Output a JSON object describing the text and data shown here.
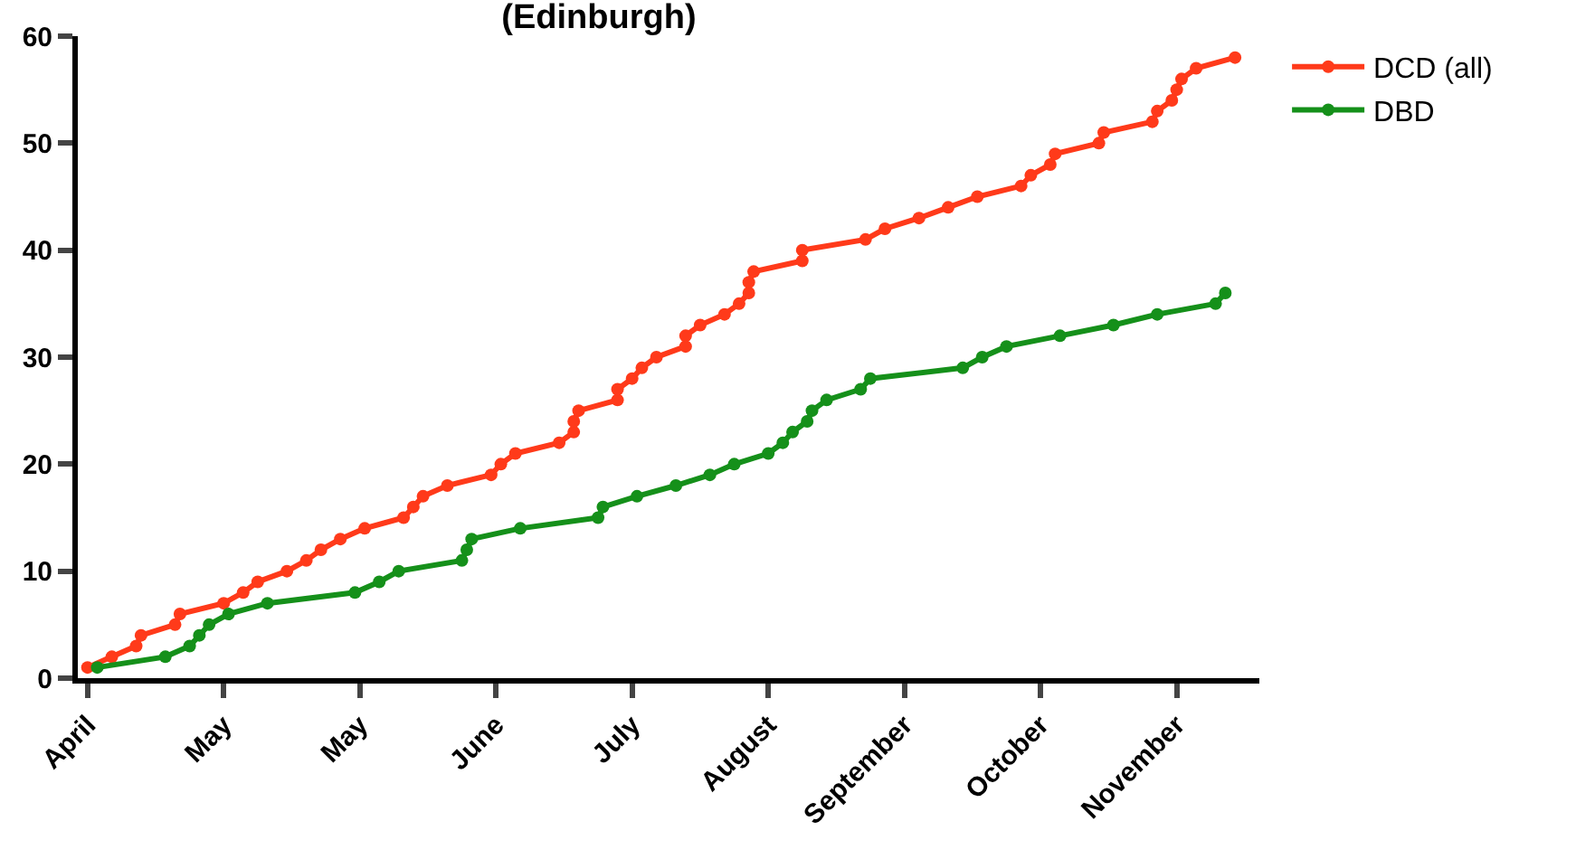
{
  "chart_data": {
    "type": "line",
    "title": "(Edinburgh)",
    "xlim": [
      "--04-01",
      "--11-30"
    ],
    "xticks": [
      {
        "value": "--04-03",
        "label": "April"
      },
      {
        "value": "--05-01",
        "label": "May"
      },
      {
        "value": "--05-29",
        "label": "May"
      },
      {
        "value": "--06-26",
        "label": "June"
      },
      {
        "value": "--07-24",
        "label": "July"
      },
      {
        "value": "--08-21",
        "label": "August"
      },
      {
        "value": "--09-18",
        "label": "September"
      },
      {
        "value": "--10-16",
        "label": "October"
      },
      {
        "value": "--11-13",
        "label": "November"
      }
    ],
    "ylim": [
      0,
      60
    ],
    "yticks": [
      0,
      10,
      20,
      30,
      40,
      50,
      60
    ],
    "series": [
      {
        "name": "DCD (all)",
        "color": "#ff3a1a",
        "x": [
          "--04-03",
          "--04-08",
          "--04-13",
          "--04-14",
          "--04-21",
          "--04-22",
          "--05-01",
          "--05-05",
          "--05-08",
          "--05-14",
          "--05-18",
          "--05-21",
          "--05-25",
          "--05-30",
          "--06-07",
          "--06-09",
          "--06-11",
          "--06-16",
          "--06-25",
          "--06-27",
          "--06-30",
          "--07-09",
          "--07-12",
          "--07-12",
          "--07-13",
          "--07-21",
          "--07-21",
          "--07-24",
          "--07-26",
          "--07-29",
          "--08-04",
          "--08-04",
          "--08-07",
          "--08-12",
          "--08-15",
          "--08-17",
          "--08-17",
          "--08-18",
          "--08-28",
          "--08-28",
          "--09-10",
          "--09-14",
          "--09-21",
          "--09-27",
          "--10-03",
          "--10-12",
          "--10-14",
          "--10-18",
          "--10-19",
          "--10-28",
          "--10-29",
          "--11-08",
          "--11-09",
          "--11-12",
          "--11-13",
          "--11-14",
          "--11-17",
          "--11-25"
        ],
        "values": [
          1,
          2,
          3,
          4,
          5,
          6,
          7,
          8,
          9,
          10,
          11,
          12,
          13,
          14,
          15,
          16,
          17,
          18,
          19,
          20,
          21,
          22,
          23,
          24,
          25,
          26,
          27,
          28,
          29,
          30,
          31,
          32,
          33,
          34,
          35,
          36,
          37,
          38,
          39,
          40,
          41,
          42,
          43,
          44,
          45,
          46,
          47,
          48,
          49,
          50,
          51,
          52,
          53,
          54,
          55,
          56,
          57,
          58
        ]
      },
      {
        "name": "DBD",
        "color": "#15901a",
        "x": [
          "--04-05",
          "--04-19",
          "--04-24",
          "--04-26",
          "--04-28",
          "--05-02",
          "--05-10",
          "--05-28",
          "--06-02",
          "--06-06",
          "--06-19",
          "--06-20",
          "--06-21",
          "--07-01",
          "--07-17",
          "--07-18",
          "--07-25",
          "--08-02",
          "--08-09",
          "--08-14",
          "--08-21",
          "--08-24",
          "--08-26",
          "--08-29",
          "--08-30",
          "--09-02",
          "--09-09",
          "--09-11",
          "--09-30",
          "--10-04",
          "--10-09",
          "--10-20",
          "--10-31",
          "--11-09",
          "--11-21",
          "--11-23"
        ],
        "values": [
          1,
          2,
          3,
          4,
          5,
          6,
          7,
          8,
          9,
          10,
          11,
          12,
          13,
          14,
          15,
          16,
          17,
          18,
          19,
          20,
          21,
          22,
          23,
          24,
          25,
          26,
          27,
          28,
          29,
          30,
          31,
          32,
          33,
          34,
          35,
          36
        ]
      }
    ],
    "legend": "top right",
    "marker": "circle",
    "line_style": "solid"
  }
}
